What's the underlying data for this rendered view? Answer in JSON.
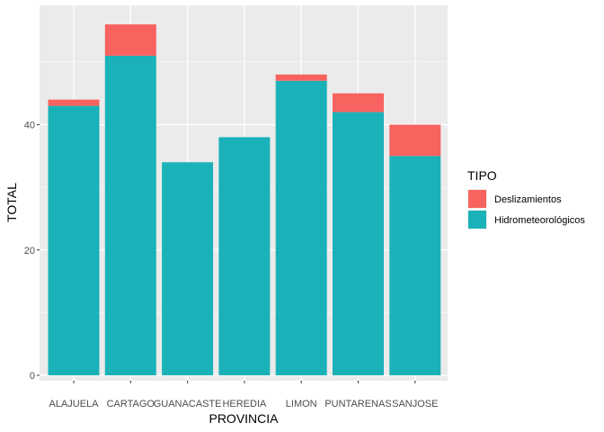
{
  "chart_data": {
    "type": "bar",
    "stacked": true,
    "categories": [
      "ALAJUELA",
      "CARTAGO",
      "GUANACASTE",
      "HEREDIA",
      "LIMON",
      "PUNTARENAS",
      "SANJOSE"
    ],
    "series": [
      {
        "name": "Hidrometeorológicos",
        "color": "#1AB2B8",
        "values": [
          43,
          51,
          34,
          38,
          47,
          42,
          35
        ]
      },
      {
        "name": "Deslizamientos",
        "color": "#F8635F",
        "values": [
          1,
          5,
          0,
          0,
          1,
          3,
          5
        ]
      }
    ],
    "xlabel": "PROVINCIA",
    "ylabel": "TOTAL",
    "yticks": [
      0,
      20,
      40
    ],
    "ylim": [
      0,
      59.2
    ],
    "grid": true,
    "panel_background": "#EBEBEB",
    "legend": {
      "title": "TIPO",
      "position": "right",
      "entries": [
        "Deslizamientos",
        "Hidrometeorológicos"
      ]
    }
  }
}
